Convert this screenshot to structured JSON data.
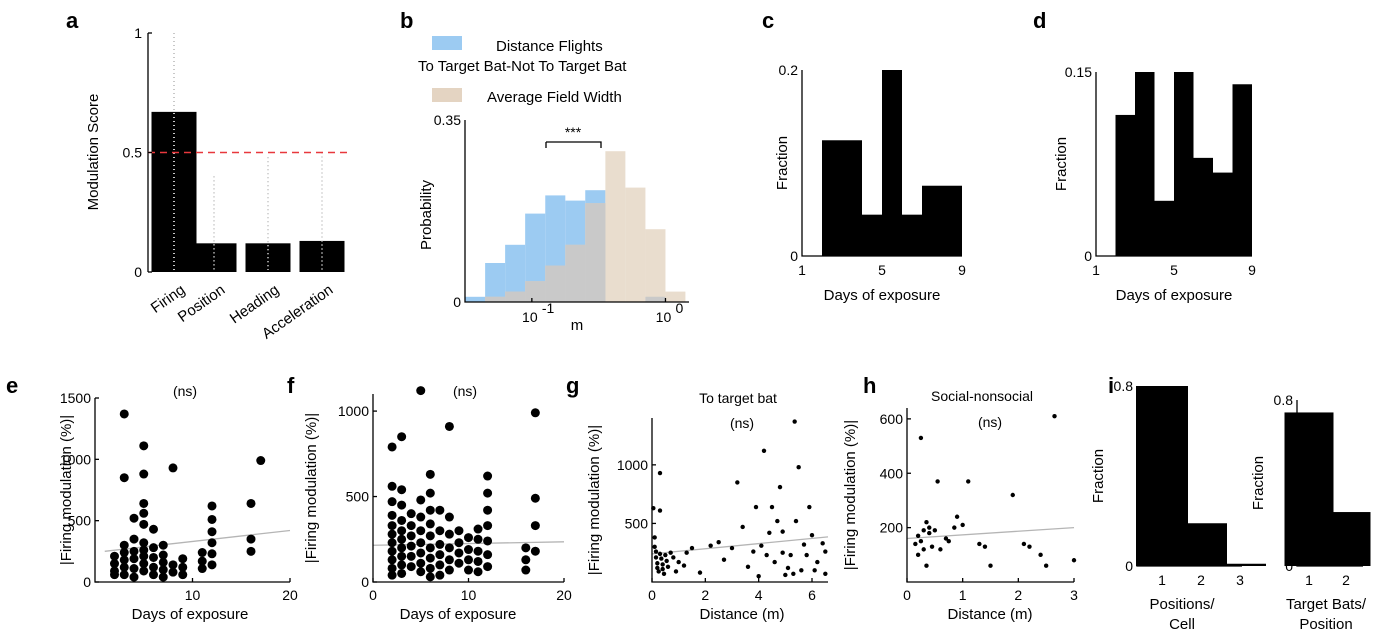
{
  "chart_data": [
    {
      "panel": "a",
      "type": "bar",
      "categories": [
        "Firing",
        "Position",
        "Heading",
        "Acceleration"
      ],
      "values": [
        0.67,
        0.12,
        0.12,
        0.13
      ],
      "ylabel": "Modulation Score",
      "ylim": [
        0,
        1
      ],
      "yticks": [
        "0",
        "0.5",
        "1"
      ],
      "threshold": 0.5,
      "threshold_color": "#e8383d"
    },
    {
      "panel": "b",
      "type": "bar",
      "legend": [
        "Distance Flights",
        "To Target Bat-Not To Target Bat",
        "Average Field Width"
      ],
      "significance": "***",
      "xlabel": "m",
      "ylabel": "Probability",
      "ylim": [
        0,
        0.35
      ],
      "yticks": [
        "0",
        "0.35"
      ],
      "xscale": "log",
      "xlim": [
        0.0316,
        1.5
      ],
      "xticks": [
        "10",
        "10"
      ],
      "xtick_exps": [
        "-1",
        "0"
      ],
      "series": [
        {
          "name": "Distance Flights",
          "color": "#9ccbf2",
          "bins": [
            [
              0.0316,
              0.0447
            ],
            [
              0.0447,
              0.0631
            ],
            [
              0.0631,
              0.0891
            ],
            [
              0.0891,
              0.126
            ],
            [
              0.126,
              0.178
            ],
            [
              0.178,
              0.251
            ],
            [
              0.251,
              0.355
            ],
            [
              0.355,
              0.501
            ],
            [
              0.501,
              0.708
            ],
            [
              0.708,
              1.0
            ],
            [
              1.0,
              1.41
            ]
          ],
          "values": [
            0.01,
            0.075,
            0.11,
            0.17,
            0.205,
            0.195,
            0.215,
            0.0,
            0.0,
            0.01,
            0.0
          ]
        },
        {
          "name": "Average Field Width",
          "color": "#e4d4c2",
          "bins": [
            [
              0.0316,
              0.0447
            ],
            [
              0.0447,
              0.0631
            ],
            [
              0.0631,
              0.0891
            ],
            [
              0.0891,
              0.126
            ],
            [
              0.126,
              0.178
            ],
            [
              0.178,
              0.251
            ],
            [
              0.251,
              0.355
            ],
            [
              0.355,
              0.501
            ],
            [
              0.501,
              0.708
            ],
            [
              0.708,
              1.0
            ],
            [
              1.0,
              1.41
            ]
          ],
          "values": [
            0.0,
            0.01,
            0.02,
            0.04,
            0.07,
            0.11,
            0.19,
            0.29,
            0.22,
            0.14,
            0.02
          ]
        }
      ]
    },
    {
      "panel": "c",
      "type": "bar",
      "xlabel": "Days of exposure",
      "ylabel": "Fraction",
      "xlim": [
        1,
        9
      ],
      "xticks": [
        "1",
        "5",
        "9"
      ],
      "yticks": [
        "0",
        "0.2"
      ],
      "ylim": [
        0,
        0.225
      ],
      "bins": [
        [
          2,
          4
        ],
        [
          4,
          5
        ],
        [
          5,
          6
        ],
        [
          6,
          7
        ],
        [
          7,
          9
        ]
      ],
      "values": [
        0.14,
        0.05,
        0.225,
        0.05,
        0.085
      ]
    },
    {
      "panel": "d",
      "type": "bar",
      "xlabel": "Days of exposure",
      "ylabel": "Fraction",
      "xlim": [
        1,
        9
      ],
      "xticks": [
        "1",
        "5",
        "9"
      ],
      "yticks": [
        "0",
        "0.15"
      ],
      "ylim": [
        0,
        0.15
      ],
      "bins": [
        [
          2,
          3
        ],
        [
          3,
          4
        ],
        [
          4,
          5
        ],
        [
          5,
          6
        ],
        [
          6,
          7
        ],
        [
          7,
          8
        ],
        [
          8,
          9
        ]
      ],
      "values": [
        0.115,
        0.15,
        0.045,
        0.15,
        0.08,
        0.068,
        0.14
      ]
    },
    {
      "panel": "e",
      "type": "scatter",
      "annotation": "(ns)",
      "xlabel": "Days of exposure",
      "ylabel": "|Firing modulation (%)|",
      "xlim": [
        0,
        20
      ],
      "ylim": [
        0,
        1500
      ],
      "xticks": [
        "10",
        "20"
      ],
      "yticks": [
        "0",
        "500",
        "1000",
        "1500"
      ],
      "trend": [
        [
          1,
          250
        ],
        [
          20,
          420
        ]
      ],
      "points": [
        [
          2,
          210
        ],
        [
          2,
          150
        ],
        [
          2,
          90
        ],
        [
          2,
          60
        ],
        [
          3,
          300
        ],
        [
          3,
          240
        ],
        [
          3,
          180
        ],
        [
          3,
          120
        ],
        [
          3,
          60
        ],
        [
          3,
          850
        ],
        [
          3,
          1370
        ],
        [
          4,
          520
        ],
        [
          4,
          350
        ],
        [
          4,
          250
        ],
        [
          4,
          190
        ],
        [
          4,
          110
        ],
        [
          4,
          40
        ],
        [
          5,
          640
        ],
        [
          5,
          560
        ],
        [
          5,
          470
        ],
        [
          5,
          320
        ],
        [
          5,
          260
        ],
        [
          5,
          210
        ],
        [
          5,
          150
        ],
        [
          5,
          90
        ],
        [
          5,
          1110
        ],
        [
          5,
          880
        ],
        [
          6,
          430
        ],
        [
          6,
          280
        ],
        [
          6,
          200
        ],
        [
          6,
          120
        ],
        [
          6,
          60
        ],
        [
          7,
          300
        ],
        [
          7,
          220
        ],
        [
          7,
          160
        ],
        [
          7,
          100
        ],
        [
          7,
          40
        ],
        [
          8,
          140
        ],
        [
          8,
          80
        ],
        [
          8,
          930
        ],
        [
          9,
          190
        ],
        [
          9,
          120
        ],
        [
          9,
          60
        ],
        [
          11,
          240
        ],
        [
          11,
          170
        ],
        [
          11,
          110
        ],
        [
          12,
          620
        ],
        [
          12,
          510
        ],
        [
          12,
          410
        ],
        [
          12,
          320
        ],
        [
          12,
          230
        ],
        [
          12,
          140
        ],
        [
          16,
          640
        ],
        [
          16,
          350
        ],
        [
          16,
          250
        ],
        [
          17,
          990
        ]
      ]
    },
    {
      "panel": "f",
      "type": "scatter",
      "annotation": "(ns)",
      "xlabel": "Days of exposure",
      "ylabel": "|Firing modulation (%)|",
      "xlim": [
        0,
        20
      ],
      "ylim": [
        0,
        1100
      ],
      "xticks": [
        "0",
        "10",
        "20"
      ],
      "yticks": [
        "0",
        "500",
        "1000"
      ],
      "trend": [
        [
          0,
          215
        ],
        [
          20,
          235
        ]
      ],
      "points": [
        [
          2,
          790
        ],
        [
          2,
          560
        ],
        [
          2,
          470
        ],
        [
          2,
          390
        ],
        [
          2,
          330
        ],
        [
          2,
          280
        ],
        [
          2,
          230
        ],
        [
          2,
          180
        ],
        [
          2,
          130
        ],
        [
          2,
          80
        ],
        [
          2,
          40
        ],
        [
          3,
          850
        ],
        [
          3,
          540
        ],
        [
          3,
          450
        ],
        [
          3,
          360
        ],
        [
          3,
          300
        ],
        [
          3,
          250
        ],
        [
          3,
          200
        ],
        [
          3,
          150
        ],
        [
          3,
          100
        ],
        [
          3,
          50
        ],
        [
          4,
          400
        ],
        [
          4,
          330
        ],
        [
          4,
          270
        ],
        [
          4,
          210
        ],
        [
          4,
          150
        ],
        [
          4,
          90
        ],
        [
          5,
          1120
        ],
        [
          5,
          480
        ],
        [
          5,
          380
        ],
        [
          5,
          300
        ],
        [
          5,
          230
        ],
        [
          5,
          170
        ],
        [
          5,
          110
        ],
        [
          5,
          60
        ],
        [
          6,
          630
        ],
        [
          6,
          520
        ],
        [
          6,
          420
        ],
        [
          6,
          340
        ],
        [
          6,
          270
        ],
        [
          6,
          200
        ],
        [
          6,
          140
        ],
        [
          6,
          80
        ],
        [
          6,
          30
        ],
        [
          7,
          420
        ],
        [
          7,
          300
        ],
        [
          7,
          220
        ],
        [
          7,
          160
        ],
        [
          7,
          100
        ],
        [
          7,
          40
        ],
        [
          8,
          910
        ],
        [
          8,
          380
        ],
        [
          8,
          280
        ],
        [
          8,
          200
        ],
        [
          8,
          130
        ],
        [
          8,
          70
        ],
        [
          9,
          300
        ],
        [
          9,
          230
        ],
        [
          9,
          170
        ],
        [
          9,
          110
        ],
        [
          10,
          260
        ],
        [
          10,
          190
        ],
        [
          10,
          130
        ],
        [
          10,
          70
        ],
        [
          11,
          310
        ],
        [
          11,
          250
        ],
        [
          11,
          180
        ],
        [
          11,
          120
        ],
        [
          11,
          60
        ],
        [
          12,
          620
        ],
        [
          12,
          520
        ],
        [
          12,
          420
        ],
        [
          12,
          330
        ],
        [
          12,
          240
        ],
        [
          12,
          160
        ],
        [
          12,
          90
        ],
        [
          16,
          200
        ],
        [
          16,
          130
        ],
        [
          16,
          70
        ],
        [
          17,
          990
        ],
        [
          17,
          490
        ],
        [
          17,
          330
        ],
        [
          17,
          180
        ]
      ]
    },
    {
      "panel": "g",
      "type": "scatter",
      "title": "To target bat",
      "annotation": "(ns)",
      "xlabel": "Distance (m)",
      "ylabel": "|Firing modulation (%)|",
      "xlim": [
        0,
        6.6
      ],
      "ylim": [
        0,
        1400
      ],
      "xticks": [
        "0",
        "2",
        "4",
        "6"
      ],
      "yticks": [
        "500",
        "1000"
      ],
      "trend": [
        [
          0,
          240
        ],
        [
          6.6,
          385
        ]
      ],
      "points": [
        [
          0.05,
          630
        ],
        [
          0.1,
          380
        ],
        [
          0.1,
          300
        ],
        [
          0.15,
          260
        ],
        [
          0.15,
          210
        ],
        [
          0.2,
          160
        ],
        [
          0.2,
          120
        ],
        [
          0.25,
          90
        ],
        [
          0.3,
          930
        ],
        [
          0.3,
          610
        ],
        [
          0.3,
          240
        ],
        [
          0.35,
          200
        ],
        [
          0.4,
          150
        ],
        [
          0.4,
          110
        ],
        [
          0.45,
          70
        ],
        [
          0.5,
          230
        ],
        [
          0.55,
          180
        ],
        [
          0.6,
          130
        ],
        [
          0.7,
          250
        ],
        [
          0.8,
          210
        ],
        [
          0.9,
          90
        ],
        [
          1.0,
          170
        ],
        [
          1.2,
          140
        ],
        [
          1.3,
          250
        ],
        [
          1.5,
          290
        ],
        [
          1.8,
          80
        ],
        [
          2.2,
          310
        ],
        [
          2.5,
          340
        ],
        [
          2.7,
          190
        ],
        [
          3.0,
          290
        ],
        [
          3.2,
          850
        ],
        [
          3.4,
          470
        ],
        [
          3.6,
          130
        ],
        [
          3.8,
          260
        ],
        [
          3.9,
          640
        ],
        [
          4.0,
          50
        ],
        [
          4.1,
          310
        ],
        [
          4.2,
          1120
        ],
        [
          4.3,
          230
        ],
        [
          4.4,
          420
        ],
        [
          4.5,
          640
        ],
        [
          4.6,
          170
        ],
        [
          4.7,
          520
        ],
        [
          4.8,
          810
        ],
        [
          4.9,
          430
        ],
        [
          4.9,
          250
        ],
        [
          5.0,
          60
        ],
        [
          5.1,
          120
        ],
        [
          5.2,
          230
        ],
        [
          5.3,
          70
        ],
        [
          5.35,
          1370
        ],
        [
          5.4,
          520
        ],
        [
          5.5,
          980
        ],
        [
          5.6,
          100
        ],
        [
          5.7,
          320
        ],
        [
          5.8,
          230
        ],
        [
          5.9,
          640
        ],
        [
          6.0,
          400
        ],
        [
          6.1,
          100
        ],
        [
          6.2,
          170
        ],
        [
          6.4,
          330
        ],
        [
          6.5,
          70
        ],
        [
          6.5,
          260
        ]
      ]
    },
    {
      "panel": "h",
      "type": "scatter",
      "title": "Social-nonsocial",
      "annotation": "(ns)",
      "xlabel": "Distance (m)",
      "ylabel": "|Firing modulation (%)|",
      "xlim": [
        0,
        3
      ],
      "ylim": [
        0,
        640
      ],
      "xticks": [
        "0",
        "1",
        "2",
        "3"
      ],
      "yticks": [
        "200",
        "400",
        "600"
      ],
      "trend": [
        [
          0,
          160
        ],
        [
          3,
          200
        ]
      ],
      "points": [
        [
          0.15,
          140
        ],
        [
          0.2,
          170
        ],
        [
          0.2,
          100
        ],
        [
          0.25,
          530
        ],
        [
          0.25,
          150
        ],
        [
          0.3,
          190
        ],
        [
          0.3,
          120
        ],
        [
          0.35,
          60
        ],
        [
          0.35,
          220
        ],
        [
          0.4,
          200
        ],
        [
          0.4,
          180
        ],
        [
          0.45,
          130
        ],
        [
          0.5,
          190
        ],
        [
          0.55,
          370
        ],
        [
          0.6,
          120
        ],
        [
          0.7,
          160
        ],
        [
          0.75,
          150
        ],
        [
          0.85,
          200
        ],
        [
          0.9,
          240
        ],
        [
          1.0,
          210
        ],
        [
          1.1,
          370
        ],
        [
          1.3,
          140
        ],
        [
          1.4,
          130
        ],
        [
          1.5,
          60
        ],
        [
          1.9,
          320
        ],
        [
          2.1,
          140
        ],
        [
          2.2,
          130
        ],
        [
          2.4,
          100
        ],
        [
          2.5,
          60
        ],
        [
          2.65,
          610
        ],
        [
          3.0,
          80
        ]
      ]
    },
    {
      "panel": "i",
      "type": "bar",
      "xlabel": "Positions/ Cell",
      "xlabel_lines": [
        "Positions/",
        "Cell"
      ],
      "ylabel": "Fraction",
      "ylim": [
        0,
        0.8
      ],
      "categories": [
        "1",
        "2",
        "3"
      ],
      "values": [
        0.8,
        0.19,
        0.01
      ],
      "yticks": [
        "0",
        "0.8"
      ]
    },
    {
      "panel": "i",
      "type": "bar",
      "xlabel": "Target Bats/ Position",
      "xlabel_lines": [
        "Target Bats/",
        "Position"
      ],
      "ylabel": "Fraction",
      "ylim": [
        0,
        0.8
      ],
      "categories": [
        "1",
        "2"
      ],
      "values": [
        0.74,
        0.26
      ],
      "yticks": [
        "0",
        "0.8"
      ]
    }
  ]
}
